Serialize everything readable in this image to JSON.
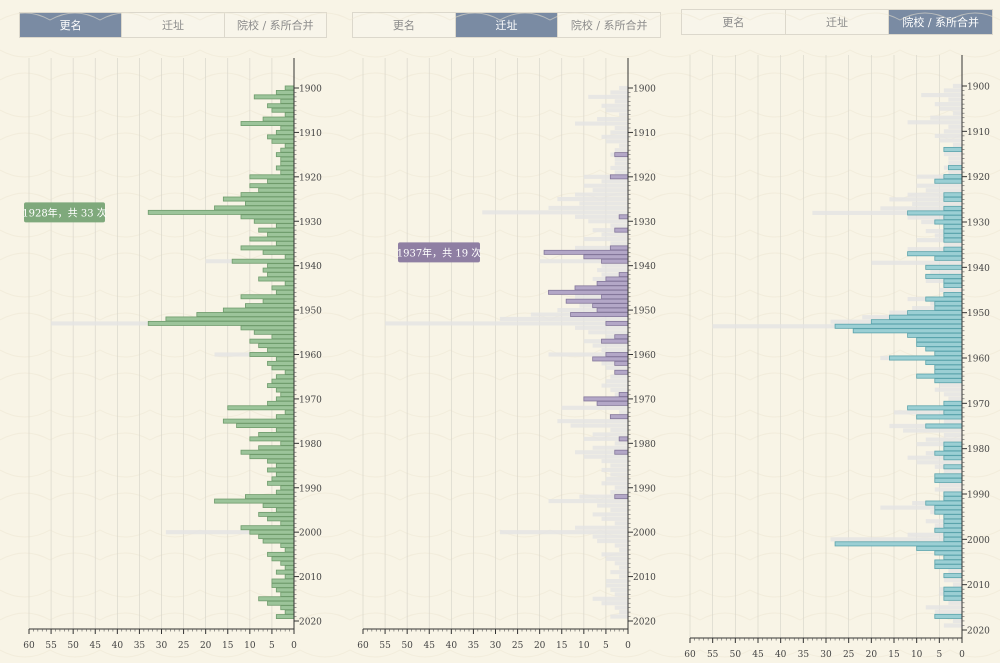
{
  "tabs": [
    "更名",
    "迁址",
    "院校 / 系所合并"
  ],
  "colors": {
    "background": "#f8f4e6",
    "tab_active": "#7a8ba3",
    "ghost": "#e4e4e4",
    "series": [
      "#9cc49a",
      "#b3a7c7",
      "#9bcfd4"
    ],
    "series_stroke": [
      "#6e9b6b",
      "#83769a",
      "#5aa3ab"
    ],
    "tooltip": [
      "#7fa97c",
      "#8f7fa3"
    ]
  },
  "chart_data": [
    {
      "type": "bar",
      "orientation": "horizontal",
      "title": "更名",
      "active_tab": 0,
      "xlim": [
        60,
        0
      ],
      "x_ticks": [
        60,
        55,
        50,
        45,
        40,
        35,
        30,
        25,
        20,
        15,
        10,
        5,
        0
      ],
      "y_ticks": [
        1900,
        1910,
        1920,
        1930,
        1940,
        1950,
        1960,
        1970,
        1980,
        1990,
        2000,
        2010,
        2020
      ],
      "ylim": [
        1898,
        2021
      ],
      "x": [
        1900,
        1901,
        1902,
        1903,
        1904,
        1905,
        1906,
        1907,
        1908,
        1909,
        1910,
        1911,
        1912,
        1913,
        1914,
        1915,
        1916,
        1917,
        1918,
        1919,
        1920,
        1921,
        1922,
        1923,
        1924,
        1925,
        1926,
        1927,
        1928,
        1929,
        1930,
        1931,
        1932,
        1933,
        1934,
        1935,
        1936,
        1937,
        1938,
        1939,
        1940,
        1941,
        1942,
        1943,
        1944,
        1945,
        1946,
        1947,
        1948,
        1949,
        1950,
        1951,
        1952,
        1953,
        1954,
        1955,
        1956,
        1957,
        1958,
        1959,
        1960,
        1961,
        1962,
        1963,
        1964,
        1965,
        1966,
        1967,
        1968,
        1969,
        1970,
        1971,
        1972,
        1973,
        1974,
        1975,
        1976,
        1977,
        1978,
        1979,
        1980,
        1981,
        1982,
        1983,
        1984,
        1985,
        1986,
        1987,
        1988,
        1989,
        1990,
        1991,
        1992,
        1993,
        1994,
        1995,
        1996,
        1997,
        1998,
        1999,
        2000,
        2001,
        2002,
        2003,
        2004,
        2005,
        2006,
        2007,
        2008,
        2009,
        2010,
        2011,
        2012,
        2013,
        2014,
        2015,
        2016,
        2017,
        2018,
        2019
      ],
      "series": [
        {
          "name": "更名",
          "values": [
            2,
            4,
            9,
            3,
            6,
            5,
            2,
            7,
            12,
            3,
            4,
            6,
            5,
            2,
            3,
            4,
            3,
            3,
            4,
            3,
            10,
            6,
            10,
            8,
            12,
            16,
            11,
            18,
            33,
            12,
            9,
            4,
            8,
            6,
            10,
            4,
            12,
            7,
            2,
            14,
            6,
            7,
            6,
            8,
            2,
            5,
            4,
            12,
            7,
            11,
            16,
            22,
            29,
            33,
            12,
            9,
            5,
            10,
            8,
            6,
            10,
            4,
            6,
            5,
            2,
            4,
            5,
            6,
            4,
            3,
            4,
            6,
            15,
            2,
            4,
            16,
            13,
            4,
            8,
            10,
            3,
            8,
            12,
            10,
            6,
            4,
            6,
            4,
            5,
            6,
            3,
            4,
            11,
            18,
            7,
            4,
            8,
            6,
            3,
            12,
            10,
            8,
            7,
            3,
            2,
            6,
            5,
            3,
            2,
            4,
            2,
            5,
            5,
            4,
            3,
            8,
            6,
            3,
            2,
            4
          ]
        }
      ],
      "ghost_values": [
        2,
        4,
        9,
        3,
        6,
        5,
        2,
        7,
        12,
        3,
        4,
        6,
        5,
        2,
        3,
        4,
        3,
        3,
        4,
        3,
        10,
        6,
        10,
        8,
        12,
        16,
        11,
        18,
        33,
        12,
        9,
        4,
        8,
        6,
        10,
        4,
        12,
        7,
        2,
        20,
        6,
        7,
        6,
        8,
        2,
        5,
        4,
        12,
        7,
        11,
        16,
        22,
        29,
        55,
        12,
        9,
        5,
        10,
        8,
        6,
        18,
        4,
        6,
        5,
        2,
        4,
        5,
        6,
        4,
        3,
        4,
        6,
        15,
        2,
        4,
        16,
        13,
        4,
        8,
        10,
        3,
        8,
        12,
        10,
        6,
        4,
        6,
        4,
        5,
        6,
        3,
        4,
        11,
        18,
        7,
        4,
        8,
        6,
        3,
        12,
        29,
        8,
        7,
        3,
        2,
        6,
        5,
        3,
        2,
        4,
        2,
        5,
        5,
        4,
        3,
        8,
        6,
        3,
        2,
        4
      ],
      "tooltip": {
        "text": "1928年，共 33 次",
        "year": 1928,
        "value": 33
      }
    },
    {
      "type": "bar",
      "orientation": "horizontal",
      "title": "迁址",
      "active_tab": 1,
      "xlim": [
        60,
        0
      ],
      "x_ticks": [
        60,
        55,
        50,
        45,
        40,
        35,
        30,
        25,
        20,
        15,
        10,
        5,
        0
      ],
      "y_ticks": [
        1900,
        1910,
        1920,
        1930,
        1940,
        1950,
        1960,
        1970,
        1980,
        1990,
        2000,
        2010,
        2020
      ],
      "ylim": [
        1898,
        2021
      ],
      "x": [
        1915,
        1920,
        1929,
        1932,
        1936,
        1937,
        1938,
        1939,
        1942,
        1943,
        1944,
        1945,
        1946,
        1947,
        1948,
        1949,
        1950,
        1951,
        1953,
        1956,
        1957,
        1960,
        1961,
        1962,
        1964,
        1969,
        1970,
        1971,
        1974,
        1979,
        1982,
        1992
      ],
      "series": [
        {
          "name": "迁址",
          "values": [
            3,
            4,
            2,
            3,
            4,
            19,
            10,
            6,
            2,
            5,
            7,
            12,
            18,
            6,
            14,
            8,
            7,
            13,
            5,
            3,
            6,
            5,
            8,
            3,
            3,
            2,
            10,
            7,
            4,
            2,
            3,
            3
          ]
        }
      ],
      "tooltip": {
        "text": "1937年，共 19 次",
        "year": 1937,
        "value": 19
      }
    },
    {
      "type": "bar",
      "orientation": "horizontal",
      "title": "院校 / 系所合并",
      "active_tab": 2,
      "xlim": [
        60,
        0
      ],
      "x_ticks": [
        60,
        55,
        50,
        45,
        40,
        35,
        30,
        25,
        20,
        15,
        10,
        5,
        0
      ],
      "y_ticks": [
        1900,
        1910,
        1920,
        1930,
        1940,
        1950,
        1960,
        1970,
        1980,
        1990,
        2000,
        2010,
        2020
      ],
      "ylim": [
        1898,
        2023
      ],
      "x": [
        1914,
        1918,
        1920,
        1921,
        1924,
        1925,
        1927,
        1928,
        1929,
        1930,
        1931,
        1932,
        1933,
        1934,
        1936,
        1937,
        1938,
        1940,
        1942,
        1943,
        1944,
        1946,
        1947,
        1948,
        1949,
        1950,
        1951,
        1952,
        1953,
        1954,
        1955,
        1956,
        1957,
        1958,
        1959,
        1960,
        1961,
        1962,
        1963,
        1964,
        1965,
        1970,
        1971,
        1972,
        1973,
        1975,
        1979,
        1980,
        1981,
        1982,
        1984,
        1986,
        1987,
        1990,
        1991,
        1992,
        1993,
        1994,
        1995,
        1996,
        1997,
        1998,
        1999,
        2000,
        2001,
        2002,
        2003,
        2004,
        2005,
        2006,
        2008,
        2011,
        2012,
        2013,
        2017
      ],
      "series": [
        {
          "name": "院校 / 系所合并",
          "values": [
            4,
            3,
            4,
            6,
            4,
            4,
            4,
            12,
            4,
            6,
            4,
            4,
            4,
            4,
            4,
            12,
            6,
            8,
            8,
            4,
            4,
            4,
            8,
            6,
            6,
            12,
            16,
            20,
            28,
            24,
            12,
            10,
            10,
            8,
            6,
            16,
            8,
            6,
            6,
            10,
            6,
            4,
            12,
            4,
            10,
            8,
            4,
            4,
            6,
            4,
            4,
            6,
            6,
            4,
            4,
            8,
            6,
            6,
            4,
            4,
            4,
            6,
            4,
            4,
            28,
            10,
            6,
            4,
            6,
            6,
            4,
            4,
            4,
            4,
            6
          ]
        }
      ]
    }
  ]
}
